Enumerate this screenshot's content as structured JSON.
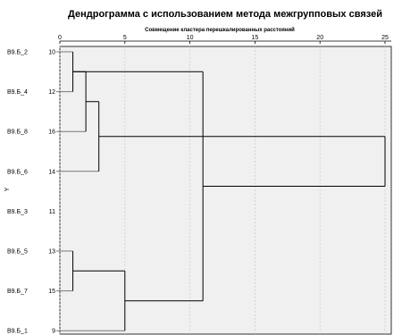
{
  "chart_data": {
    "type": "dendrogram",
    "title": "Дендрограмма с использованием метода межгрупповых связей",
    "xlabel": "Совмещение кластера перешкалированных расстояний",
    "ylabel": "Y",
    "xlim": [
      0,
      25
    ],
    "xticks": [
      0,
      5,
      10,
      15,
      20,
      25
    ],
    "grid": false,
    "leaves": [
      {
        "label": "В9.Б_2",
        "id": "10"
      },
      {
        "label": "В9.Б_4",
        "id": "12"
      },
      {
        "label": "В9.Б_8",
        "id": "16"
      },
      {
        "label": "В9.Б_6",
        "id": "14"
      },
      {
        "label": "В9.Б_3",
        "id": "11"
      },
      {
        "label": "В9.Б_5",
        "id": "13"
      },
      {
        "label": "В9.Б_7",
        "id": "15"
      },
      {
        "label": "В9.Б_1",
        "id": "9"
      }
    ],
    "merges": [
      {
        "a": 0,
        "b": 1,
        "distance": 1
      },
      {
        "a": 5,
        "b": 6,
        "distance": 1
      },
      {
        "a": 8,
        "b": 2,
        "distance": 2
      },
      {
        "a": 10,
        "b": 3,
        "distance": 3
      },
      {
        "a": 9,
        "b": 7,
        "distance": 5
      },
      {
        "a": 12,
        "b": 8,
        "distance": 11
      },
      {
        "a": 11,
        "b": 13,
        "distance": 25
      }
    ]
  },
  "colors": {
    "plot_background": "#f0f0f0",
    "plot_border": "#000000",
    "link": "#000000",
    "leaf_stub": "#777777"
  }
}
